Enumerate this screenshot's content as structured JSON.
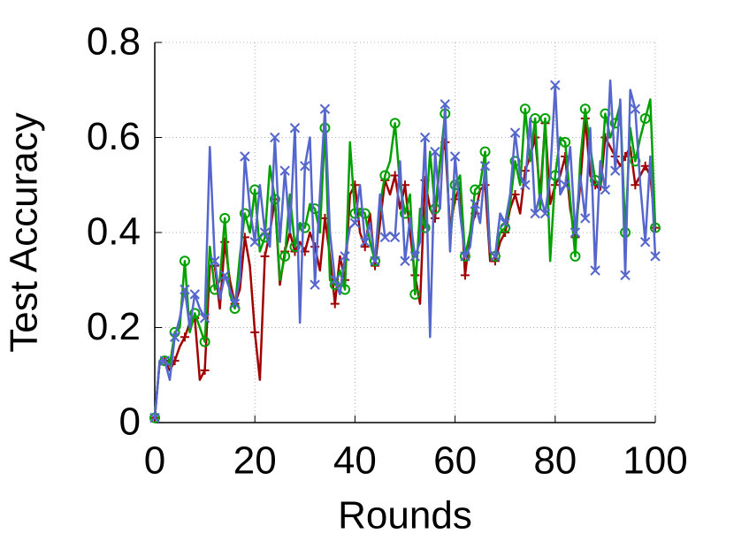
{
  "chart_data": {
    "type": "line",
    "xlabel": "Rounds",
    "ylabel": "Test Accuracy",
    "xlim": [
      0,
      100
    ],
    "ylim": [
      0,
      0.8
    ],
    "xticks": [
      0,
      20,
      40,
      60,
      80,
      100
    ],
    "yticks": [
      0,
      0.2,
      0.4,
      0.6,
      0.8
    ],
    "grid": true,
    "x": [
      0,
      1,
      2,
      3,
      4,
      5,
      6,
      7,
      8,
      9,
      10,
      11,
      12,
      13,
      14,
      15,
      16,
      17,
      18,
      19,
      20,
      21,
      22,
      23,
      24,
      25,
      26,
      27,
      28,
      29,
      30,
      31,
      32,
      33,
      34,
      35,
      36,
      37,
      38,
      39,
      40,
      41,
      42,
      43,
      44,
      45,
      46,
      47,
      48,
      49,
      50,
      51,
      52,
      53,
      54,
      55,
      56,
      57,
      58,
      59,
      60,
      61,
      62,
      63,
      64,
      65,
      66,
      67,
      68,
      69,
      70,
      71,
      72,
      73,
      74,
      75,
      76,
      77,
      78,
      79,
      80,
      81,
      82,
      83,
      84,
      85,
      86,
      87,
      88,
      89,
      90,
      91,
      92,
      93,
      94,
      95,
      96,
      97,
      98,
      99,
      100
    ],
    "series": [
      {
        "color": "#a00000",
        "marker": "plus",
        "values": [
          0.01,
          0.13,
          0.13,
          0.11,
          0.13,
          0.16,
          0.18,
          0.21,
          0.22,
          0.09,
          0.11,
          0.33,
          0.33,
          0.24,
          0.38,
          0.3,
          0.25,
          0.28,
          0.39,
          0.33,
          0.19,
          0.09,
          0.35,
          0.4,
          0.47,
          0.29,
          0.36,
          0.4,
          0.36,
          0.38,
          0.36,
          0.4,
          0.37,
          0.32,
          0.43,
          0.35,
          0.25,
          0.35,
          0.3,
          0.48,
          0.5,
          0.4,
          0.37,
          0.44,
          0.33,
          0.42,
          0.51,
          0.48,
          0.52,
          0.45,
          0.5,
          0.4,
          0.31,
          0.25,
          0.51,
          0.45,
          0.43,
          0.55,
          0.59,
          0.41,
          0.47,
          0.5,
          0.31,
          0.4,
          0.44,
          0.49,
          0.5,
          0.34,
          0.34,
          0.38,
          0.4,
          0.45,
          0.48,
          0.44,
          0.53,
          0.56,
          0.6,
          0.48,
          0.63,
          0.46,
          0.5,
          0.52,
          0.56,
          0.45,
          0.39,
          0.5,
          0.64,
          0.52,
          0.5,
          0.49,
          0.6,
          0.58,
          0.56,
          0.54,
          0.56,
          0.58,
          0.5,
          0.52,
          0.54,
          0.52,
          0.41
        ]
      },
      {
        "color": "#00a000",
        "marker": "circle",
        "values": [
          0.01,
          0.13,
          0.13,
          0.12,
          0.19,
          0.2,
          0.34,
          0.19,
          0.23,
          0.2,
          0.17,
          0.37,
          0.28,
          0.3,
          0.43,
          0.27,
          0.24,
          0.35,
          0.44,
          0.4,
          0.49,
          0.36,
          0.39,
          0.54,
          0.47,
          0.3,
          0.35,
          0.48,
          0.37,
          0.42,
          0.41,
          0.46,
          0.45,
          0.4,
          0.62,
          0.3,
          0.29,
          0.32,
          0.28,
          0.59,
          0.44,
          0.45,
          0.44,
          0.38,
          0.34,
          0.46,
          0.52,
          0.55,
          0.63,
          0.5,
          0.44,
          0.48,
          0.27,
          0.45,
          0.41,
          0.57,
          0.45,
          0.55,
          0.65,
          0.38,
          0.5,
          0.52,
          0.35,
          0.4,
          0.49,
          0.5,
          0.57,
          0.36,
          0.35,
          0.4,
          0.41,
          0.46,
          0.55,
          0.5,
          0.66,
          0.55,
          0.64,
          0.45,
          0.64,
          0.34,
          0.52,
          0.6,
          0.59,
          0.47,
          0.35,
          0.55,
          0.66,
          0.58,
          0.51,
          0.5,
          0.65,
          0.6,
          0.63,
          0.67,
          0.4,
          0.62,
          0.55,
          0.6,
          0.64,
          0.68,
          0.41
        ]
      },
      {
        "color": "#5566cc",
        "marker": "cross",
        "values": [
          0.01,
          0.13,
          0.13,
          0.09,
          0.18,
          0.22,
          0.28,
          0.2,
          0.27,
          0.24,
          0.22,
          0.58,
          0.34,
          0.26,
          0.31,
          0.28,
          0.25,
          0.3,
          0.56,
          0.45,
          0.38,
          0.5,
          0.4,
          0.37,
          0.6,
          0.38,
          0.53,
          0.4,
          0.62,
          0.21,
          0.54,
          0.6,
          0.29,
          0.48,
          0.66,
          0.4,
          0.3,
          0.27,
          0.35,
          0.41,
          0.42,
          0.5,
          0.38,
          0.42,
          0.34,
          0.48,
          0.39,
          0.4,
          0.39,
          0.55,
          0.34,
          0.43,
          0.35,
          0.38,
          0.6,
          0.18,
          0.57,
          0.45,
          0.67,
          0.36,
          0.56,
          0.44,
          0.35,
          0.37,
          0.46,
          0.42,
          0.54,
          0.36,
          0.35,
          0.44,
          0.42,
          0.48,
          0.61,
          0.52,
          0.5,
          0.64,
          0.44,
          0.48,
          0.44,
          0.52,
          0.71,
          0.48,
          0.5,
          0.58,
          0.4,
          0.52,
          0.43,
          0.62,
          0.32,
          0.55,
          0.49,
          0.72,
          0.53,
          0.68,
          0.31,
          0.7,
          0.66,
          0.5,
          0.38,
          0.56,
          0.35
        ]
      }
    ]
  }
}
